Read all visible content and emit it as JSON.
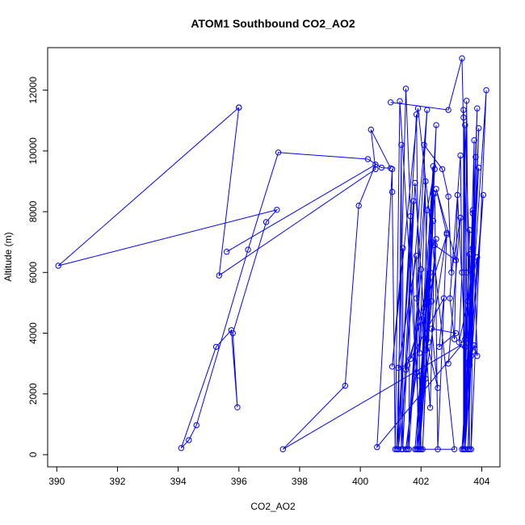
{
  "chart_data": {
    "type": "scatter",
    "title": "ATOM1 Southbound CO2_AO2",
    "xlabel": "CO2_AO2",
    "ylabel": "Altitude (m)",
    "xlim": [
      389.7,
      404.6
    ],
    "ylim": [
      -400,
      13400
    ],
    "xticks": [
      390,
      392,
      394,
      396,
      398,
      400,
      402,
      404
    ],
    "yticks": [
      0,
      2000,
      4000,
      6000,
      8000,
      10000,
      12000
    ],
    "grid": false,
    "legend": "none",
    "series_color": "#0000ff",
    "connected": true,
    "series": [
      {
        "points": [
          [
            396.0,
            11430
          ],
          [
            395.35,
            5900
          ],
          [
            400.5,
            9400
          ],
          [
            400.35,
            10700
          ],
          [
            401.0,
            9430
          ],
          [
            400.7,
            9450
          ],
          [
            400.25,
            9730
          ],
          [
            397.3,
            9950
          ],
          [
            396.3,
            6750
          ],
          [
            394.6,
            970
          ],
          [
            394.35,
            480
          ],
          [
            394.1,
            220
          ],
          [
            395.25,
            3550
          ],
          [
            395.75,
            4100
          ],
          [
            395.95,
            1560
          ],
          [
            395.8,
            4000
          ],
          [
            396.9,
            7660
          ],
          [
            397.25,
            8060
          ],
          [
            390.05,
            6220
          ],
          [
            396.0,
            11430
          ]
        ]
      },
      {
        "points": [
          [
            395.6,
            6680
          ],
          [
            400.5,
            9550
          ],
          [
            399.95,
            8200
          ],
          [
            399.5,
            2270
          ],
          [
            397.45,
            180
          ],
          [
            403.35,
            3630
          ],
          [
            400.55,
            250
          ],
          [
            401.05,
            9400
          ],
          [
            401.05,
            8650
          ],
          [
            401.15,
            180
          ],
          [
            401.3,
            11640
          ],
          [
            402.0,
            180
          ],
          [
            401.95,
            2600
          ],
          [
            401.85,
            11200
          ],
          [
            401.25,
            180
          ],
          [
            401.35,
            10200
          ],
          [
            401.35,
            180
          ],
          [
            401.75,
            8350
          ],
          [
            401.2,
            180
          ],
          [
            401.5,
            12050
          ],
          [
            401.85,
            2700
          ],
          [
            401.5,
            180
          ],
          [
            402.35,
            7000
          ],
          [
            402.5,
            10850
          ],
          [
            401.9,
            180
          ],
          [
            401.85,
            6550
          ],
          [
            401.25,
            2860
          ],
          [
            401.55,
            2950
          ],
          [
            401.25,
            180
          ],
          [
            401.65,
            7850
          ],
          [
            401.6,
            180
          ],
          [
            402.0,
            6100
          ],
          [
            401.55,
            180
          ],
          [
            402.15,
            9000
          ],
          [
            401.95,
            3350
          ],
          [
            402.35,
            6950
          ],
          [
            401.85,
            180
          ],
          [
            402.45,
            9400
          ],
          [
            402.2,
            8050
          ],
          [
            401.95,
            180
          ],
          [
            402.4,
            9500
          ],
          [
            402.1,
            4700
          ],
          [
            401.95,
            180
          ],
          [
            402.4,
            7700
          ],
          [
            402.05,
            180
          ],
          [
            402.4,
            8600
          ],
          [
            402.15,
            2500
          ],
          [
            402.85,
            7300
          ],
          [
            402.55,
            180
          ],
          [
            402.45,
            8600
          ],
          [
            401.8,
            180
          ],
          [
            402.25,
            5750
          ],
          [
            401.9,
            180
          ],
          [
            402.35,
            5050
          ],
          [
            402.15,
            3450
          ],
          [
            402.5,
            7100
          ],
          [
            401.95,
            180
          ],
          [
            403.1,
            180
          ],
          [
            401.9,
            11400
          ],
          [
            401.05,
            2900
          ],
          [
            401.4,
            6800
          ],
          [
            401.4,
            180
          ],
          [
            401.8,
            8950
          ],
          [
            402.3,
            1550
          ],
          [
            402.45,
            6900
          ],
          [
            403.15,
            6400
          ],
          [
            402.5,
            8750
          ],
          [
            402.85,
            7250
          ],
          [
            401.5,
            2800
          ],
          [
            402.2,
            11350
          ],
          [
            401.85,
            5150
          ],
          [
            402.55,
            2200
          ],
          [
            402.35,
            4150
          ],
          [
            403.15,
            4000
          ],
          [
            402.6,
            3550
          ],
          [
            402.75,
            5150
          ],
          [
            401.65,
            3150
          ],
          [
            402.3,
            6000
          ],
          [
            402.25,
            3700
          ],
          [
            402.1,
            10200
          ],
          [
            402.7,
            9400
          ],
          [
            402.9,
            8500
          ],
          [
            403.0,
            6000
          ],
          [
            403.3,
            7800
          ],
          [
            402.9,
            3000
          ]
        ]
      },
      {
        "points": [
          [
            401.0,
            11600
          ],
          [
            402.9,
            11350
          ],
          [
            403.35,
            13050
          ],
          [
            403.5,
            6000
          ],
          [
            403.4,
            11350
          ],
          [
            403.6,
            180
          ],
          [
            403.5,
            11650
          ],
          [
            403.45,
            180
          ],
          [
            403.4,
            11100
          ],
          [
            403.4,
            180
          ],
          [
            403.45,
            10850
          ],
          [
            403.7,
            3400
          ],
          [
            403.7,
            7950
          ],
          [
            403.45,
            180
          ],
          [
            403.9,
            10750
          ],
          [
            403.55,
            180
          ],
          [
            403.85,
            11400
          ],
          [
            403.55,
            3000
          ],
          [
            403.75,
            10350
          ],
          [
            403.65,
            180
          ],
          [
            404.15,
            12000
          ],
          [
            403.55,
            3050
          ],
          [
            403.9,
            9450
          ],
          [
            403.35,
            180
          ],
          [
            404.05,
            8550
          ],
          [
            403.45,
            180
          ],
          [
            403.85,
            6500
          ],
          [
            403.55,
            5050
          ],
          [
            403.6,
            7400
          ],
          [
            403.4,
            180
          ],
          [
            403.8,
            9800
          ],
          [
            403.55,
            180
          ],
          [
            403.7,
            6800
          ],
          [
            403.45,
            3550
          ],
          [
            403.6,
            6600
          ],
          [
            403.65,
            3250
          ],
          [
            403.75,
            3600
          ],
          [
            403.85,
            3250
          ],
          [
            403.7,
            8050
          ],
          [
            403.55,
            2950
          ],
          [
            403.4,
            180
          ],
          [
            403.45,
            3800
          ],
          [
            403.2,
            8550
          ],
          [
            403.1,
            3800
          ],
          [
            402.95,
            5150
          ],
          [
            403.3,
            9850
          ],
          [
            403.35,
            6000
          ],
          [
            403.25,
            3700
          ],
          [
            403.55,
            5050
          ],
          [
            403.6,
            2950
          ]
        ]
      }
    ]
  }
}
